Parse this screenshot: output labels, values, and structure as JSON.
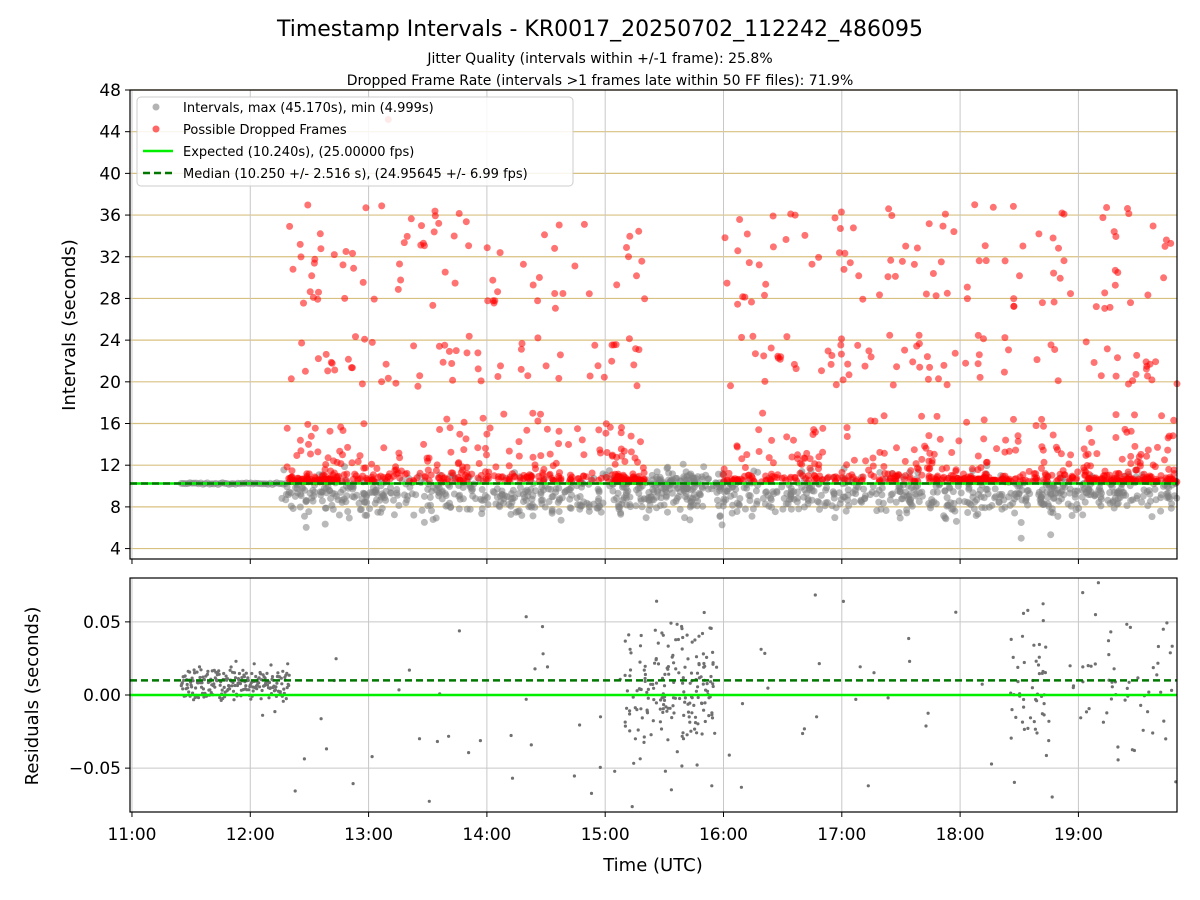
{
  "chart_data": {
    "title": "Timestamp Intervals - KR0017_20250702_112242_486095",
    "subtitle_lines": [
      "Jitter Quality (intervals within +/-1 frame): 25.8%",
      "Dropped Frame Rate (intervals >1 frames late within 50 FF files): 71.9%"
    ],
    "xlabel": "Time (UTC)",
    "x_ticks": [
      "11:00",
      "12:00",
      "13:00",
      "14:00",
      "15:00",
      "16:00",
      "17:00",
      "18:00",
      "19:00"
    ],
    "x_range": [
      "10:59",
      "19:50"
    ],
    "panels": [
      {
        "type": "scatter",
        "ylabel": "Intervals (seconds)",
        "ylim": [
          3,
          48
        ],
        "y_ticks": [
          "4",
          "8",
          "12",
          "16",
          "20",
          "24",
          "28",
          "32",
          "36",
          "40",
          "44",
          "48"
        ],
        "grid": true,
        "legend_position": "top-left",
        "legend": [
          {
            "label": "Intervals, max (45.170s), min (4.999s)",
            "color": "#808080",
            "marker": "circle"
          },
          {
            "label": "Possible Dropped Frames",
            "color": "#ff0000",
            "marker": "circle"
          },
          {
            "label": "Expected (10.240s), (25.00000 fps)",
            "color": "#00ee00",
            "line": "solid"
          },
          {
            "label": "Median (10.250 +/- 2.516 s), (24.95645 +/- 6.99 fps)",
            "color": "#007700",
            "line": "dashed"
          }
        ],
        "reference_lines": {
          "expected": 10.24,
          "median": 10.25
        },
        "series": [
          {
            "name": "Intervals",
            "color": "#808080",
            "max": 45.17,
            "min": 4.999,
            "gap_without_data": [
              "15:50",
              "15:55"
            ]
          },
          {
            "name": "Possible Dropped Frames",
            "color": "#ff0000",
            "dense_bands": [
              10.4,
              12.5,
              14.5,
              20.8,
              23,
              31,
              33
            ],
            "active_windows": [
              [
                "12:18",
                "15:20"
              ],
              [
                "16:00",
                "19:50"
              ]
            ]
          }
        ]
      },
      {
        "type": "scatter",
        "ylabel": "Residuals (seconds)",
        "ylim": [
          -0.08,
          0.08
        ],
        "y_ticks": [
          "−0.05",
          "0.00",
          "0.05"
        ],
        "grid": true,
        "reference_lines": {
          "zero": 0.0,
          "median_offset": 0.01
        },
        "series": [
          {
            "name": "Residuals",
            "color": "#707070",
            "clusters": [
              [
                "11:25",
                "12:20"
              ],
              [
                "14:55",
                "15:55"
              ],
              [
                "18:25",
                "18:45"
              ],
              [
                "18:55",
                "19:50"
              ]
            ]
          }
        ]
      }
    ]
  },
  "colors": {
    "gray_marker": "#808080",
    "red_marker": "#ff0000",
    "expected_line": "#00ee00",
    "median_line": "#007700",
    "minor_grid": "#d8c080"
  }
}
